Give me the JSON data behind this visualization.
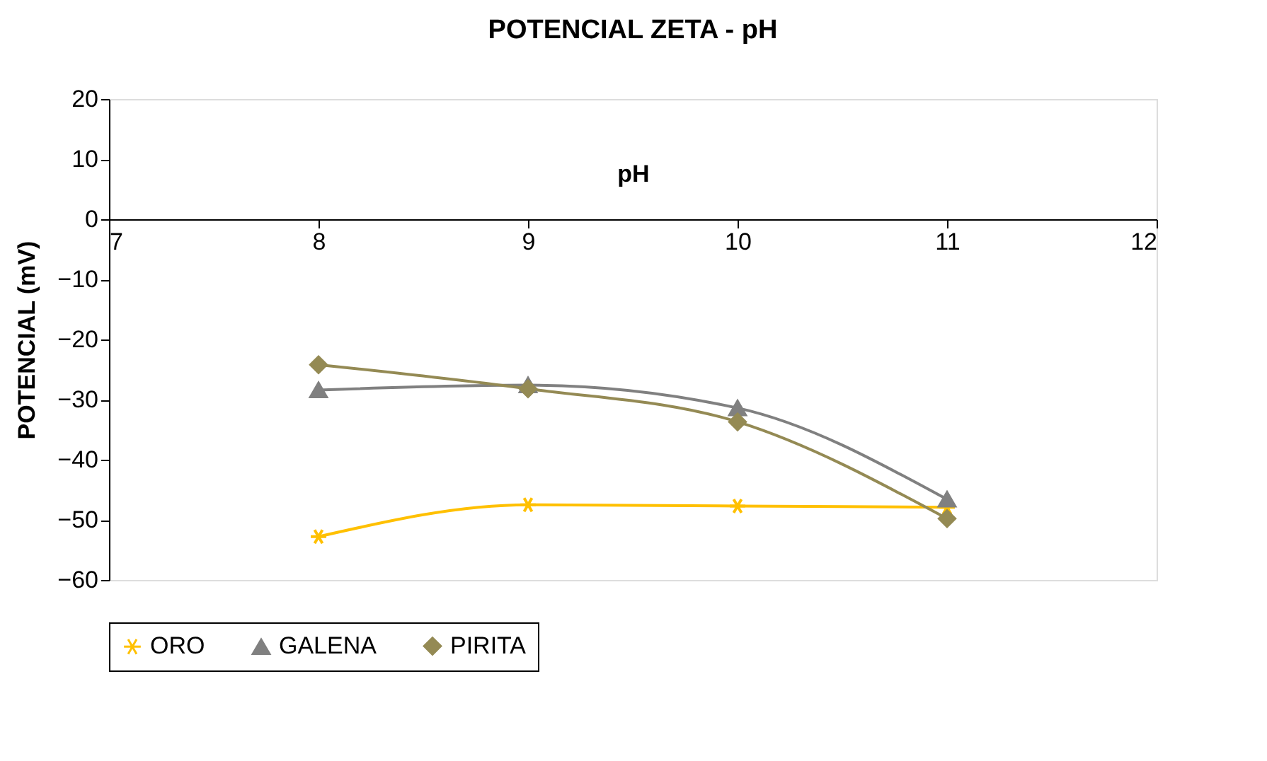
{
  "chart_data": {
    "type": "line",
    "title": "POTENCIAL ZETA - pH",
    "xlabel": "pH",
    "ylabel": "POTENCIAL (mV)",
    "x": [
      8,
      9,
      10,
      11
    ],
    "series": [
      {
        "name": "ORO",
        "color": "#ffc000",
        "marker": "cross",
        "values": [
          -52.8,
          -47.5,
          -47.7,
          -47.9
        ]
      },
      {
        "name": "GALENA",
        "color": "#808080",
        "marker": "triangle",
        "values": [
          -28.4,
          -27.6,
          -31.4,
          -46.6
        ]
      },
      {
        "name": "PIRITA",
        "color": "#948a54",
        "marker": "diamond",
        "values": [
          -24.2,
          -28.2,
          -33.7,
          -49.8
        ]
      }
    ],
    "xlim": [
      7,
      12
    ],
    "xticks": [
      7,
      8,
      9,
      10,
      11,
      12
    ],
    "ylim": [
      -60,
      20
    ],
    "yticks": [
      -60,
      -50,
      -40,
      -30,
      -20,
      -10,
      0,
      10,
      20
    ],
    "grid": false,
    "legend": "bottom",
    "line_style": "solid"
  }
}
